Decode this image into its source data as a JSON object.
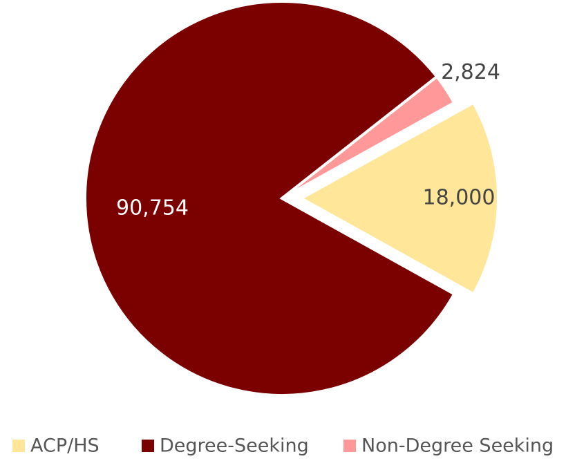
{
  "chart_data": {
    "type": "pie",
    "categories": [
      "ACP/HS",
      "Degree-Seeking",
      "Non-Degree Seeking"
    ],
    "values": [
      18000,
      90754,
      2824
    ],
    "value_labels": [
      "18,000",
      "90,754",
      "2,824"
    ],
    "colors": [
      "#FFE699",
      "#7B0000",
      "#FF9999"
    ],
    "legend": "bottom"
  }
}
